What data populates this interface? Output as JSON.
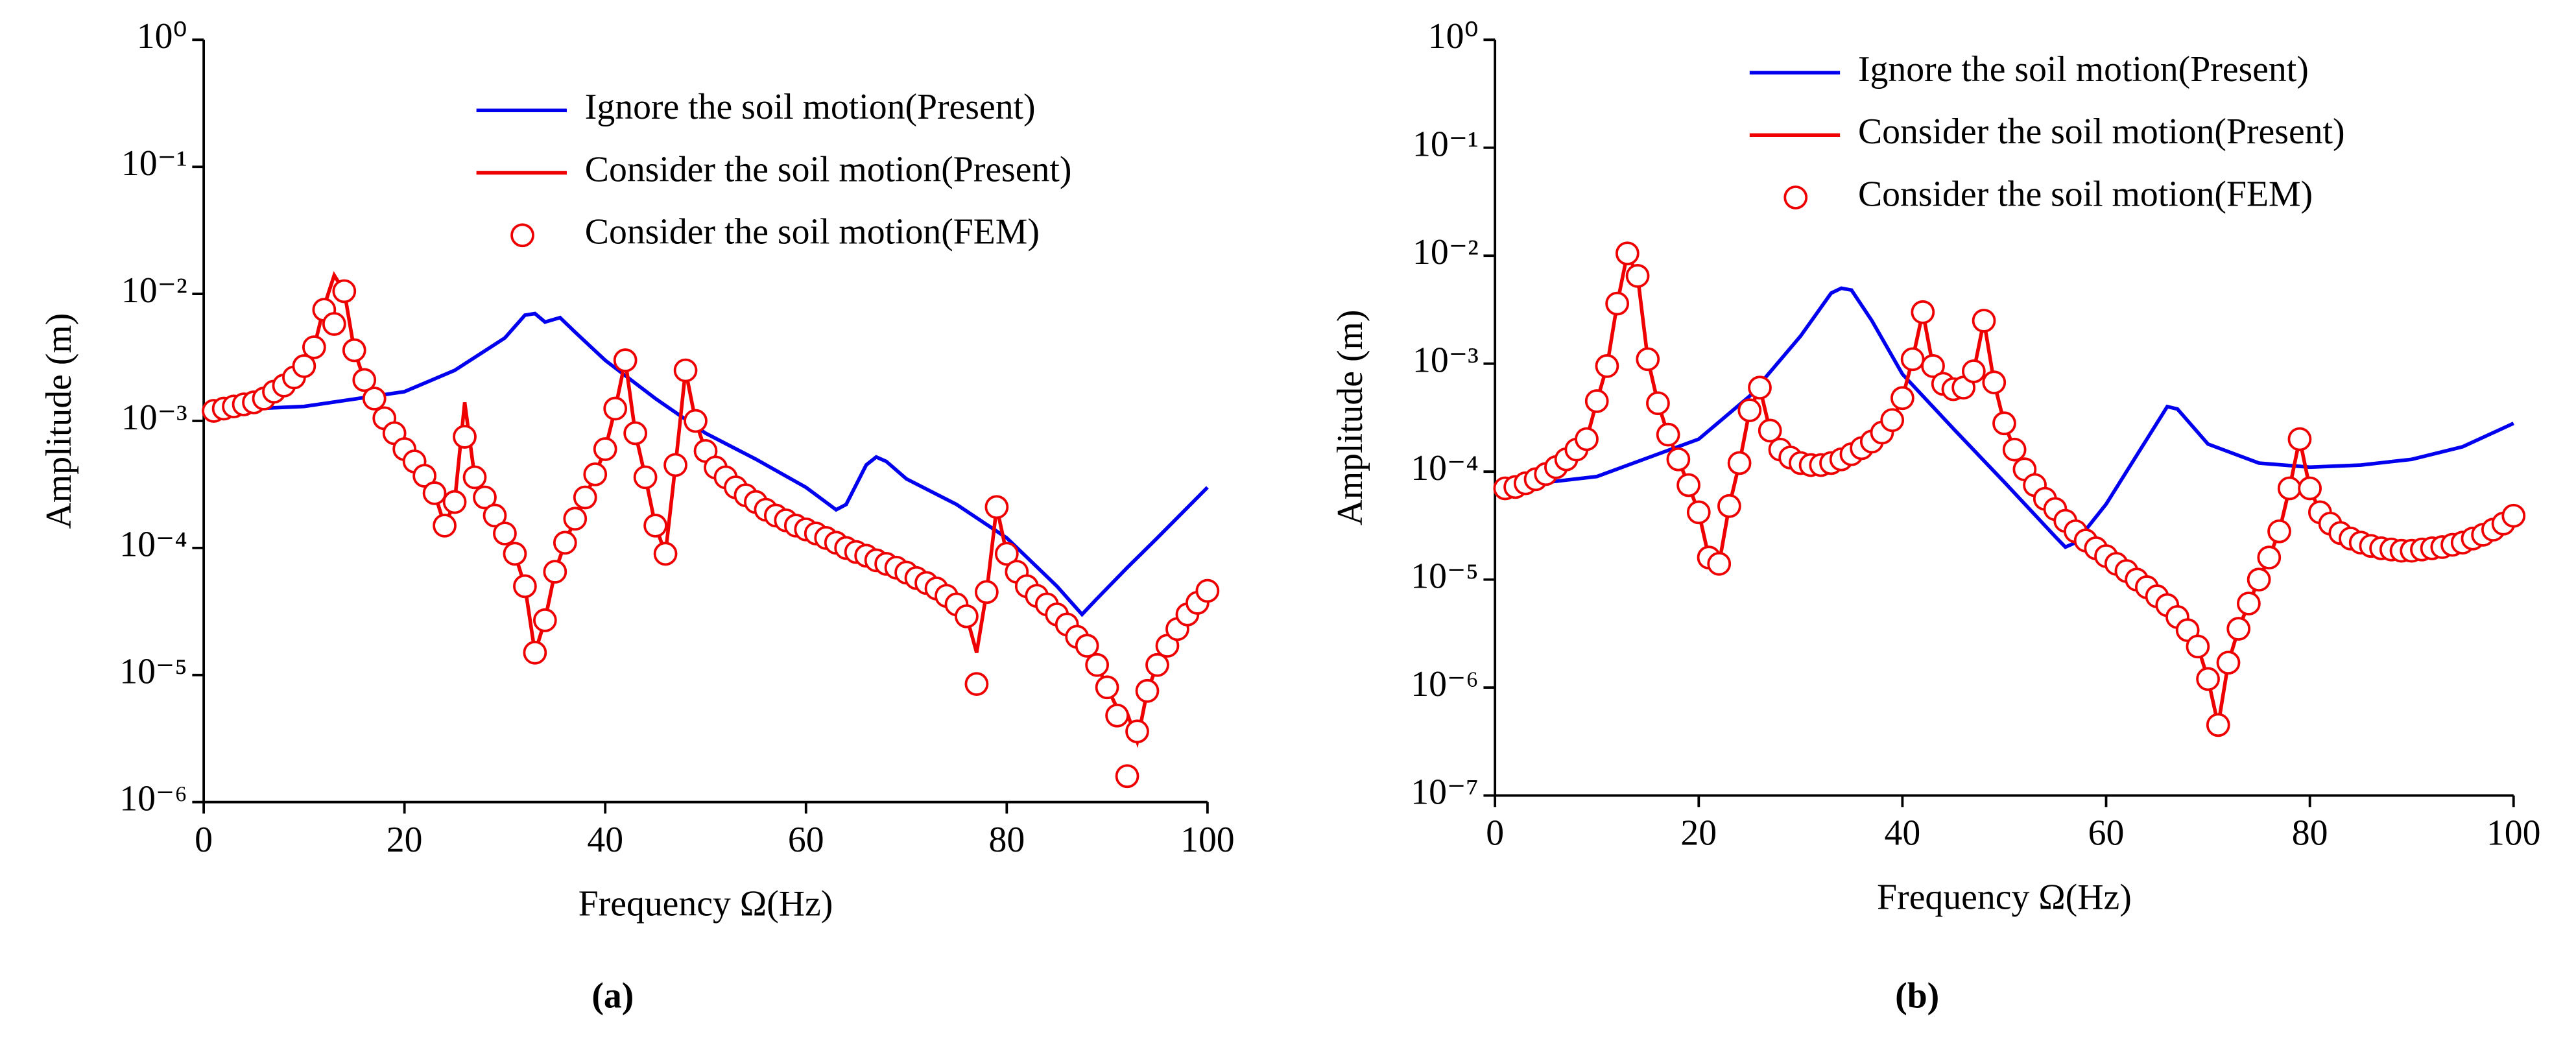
{
  "chart_data": [
    {
      "type": "line",
      "caption": "(a)",
      "xlabel": "Frequency Ω(Hz)",
      "ylabel": "Amplitude (m)",
      "log_y": true,
      "xlim": [
        0,
        100
      ],
      "xticks": [
        0,
        20,
        40,
        60,
        80,
        100
      ],
      "ylim": [
        1e-06,
        1
      ],
      "yticks": [
        {
          "value": 1e-06,
          "label": "10⁻⁶"
        },
        {
          "value": 1e-05,
          "label": "10⁻⁵"
        },
        {
          "value": 0.0001,
          "label": "10⁻⁴"
        },
        {
          "value": 0.001,
          "label": "10⁻³"
        },
        {
          "value": 0.01,
          "label": "10⁻²"
        },
        {
          "value": 0.1,
          "label": "10⁻¹"
        },
        {
          "value": 1,
          "label": "10⁰"
        }
      ],
      "x": [
        0,
        1,
        2,
        3,
        4,
        5,
        6,
        7,
        8,
        9,
        10,
        11,
        12,
        13,
        14,
        15,
        16,
        17,
        18,
        19,
        20,
        21,
        22,
        23,
        24,
        25,
        26,
        27,
        28,
        29,
        30,
        31,
        32,
        33,
        34,
        35,
        36,
        37,
        38,
        39,
        40,
        41,
        42,
        43,
        44,
        45,
        46,
        47,
        48,
        49,
        50,
        51,
        52,
        53,
        54,
        55,
        56,
        57,
        58,
        59,
        60,
        61,
        62,
        63,
        64,
        65,
        66,
        67,
        68,
        69,
        70,
        71,
        72,
        73,
        74,
        75,
        76,
        77,
        78,
        79,
        80,
        81,
        82,
        83,
        84,
        85,
        86,
        87,
        88,
        89,
        90,
        91,
        92,
        93,
        94,
        95,
        96,
        97,
        98,
        99,
        100
      ],
      "series": [
        {
          "name": "Ignore the soil motion(Present)",
          "color": "#0000ee",
          "style": "line",
          "x": [
            0,
            10,
            20,
            25,
            30,
            32,
            33,
            34,
            35.5,
            37,
            40,
            45,
            50,
            55,
            60,
            63,
            64,
            66,
            67,
            68,
            70,
            75,
            80,
            85,
            87.5,
            89,
            92,
            95,
            100
          ],
          "values": [
            0.0012,
            0.0013,
            0.0017,
            0.0025,
            0.0045,
            0.0068,
            0.007,
            0.006,
            0.0065,
            0.005,
            0.003,
            0.0015,
            0.0008,
            0.0005,
            0.0003,
            0.0002,
            0.00022,
            0.00045,
            0.00052,
            0.00048,
            0.00035,
            0.00022,
            0.00012,
            5e-05,
            3e-05,
            4e-05,
            7e-05,
            0.00012,
            0.0003
          ]
        },
        {
          "name": "Consider the soil motion(Present)",
          "color": "#ee0000",
          "style": "line",
          "values": [
            0.0012,
            0.0012,
            0.00125,
            0.0013,
            0.00135,
            0.0014,
            0.0015,
            0.0017,
            0.0019,
            0.0022,
            0.0027,
            0.0038,
            0.008,
            0.014,
            0.0105,
            0.0036,
            0.0021,
            0.0015,
            0.00105,
            0.0008,
            0.0006,
            0.00048,
            0.00037,
            0.00027,
            0.00015,
            0.00023,
            0.0014,
            0.00036,
            0.00025,
            0.00018,
            0.00013,
            9e-05,
            5e-05,
            1.5e-05,
            2.7e-05,
            6.5e-05,
            0.00011,
            0.00017,
            0.00025,
            0.00038,
            0.0006,
            0.00125,
            0.003,
            0.0008,
            0.00036,
            0.00015,
            9e-05,
            0.00045,
            0.0025,
            0.001,
            0.00058,
            0.00043,
            0.00036,
            0.0003,
            0.00026,
            0.00023,
            0.0002,
            0.00018,
            0.000165,
            0.00015,
            0.00014,
            0.00013,
            0.00012,
            0.00011,
            0.0001,
            9.3e-05,
            8.7e-05,
            8e-05,
            7.5e-05,
            7e-05,
            6.4e-05,
            5.8e-05,
            5.3e-05,
            4.8e-05,
            4.2e-05,
            3.6e-05,
            2.9e-05,
            1.5e-05,
            4.5e-05,
            0.00021,
            9e-05,
            6.5e-05,
            5e-05,
            4.2e-05,
            3.6e-05,
            3e-05,
            2.5e-05,
            2e-05,
            1.7e-05,
            1.2e-05,
            8e-06,
            5.5e-06,
            5e-06,
            3e-06,
            7.5e-06,
            1.2e-05,
            1.7e-05,
            2.3e-05,
            3e-05,
            3.7e-05,
            4.6e-05
          ]
        },
        {
          "name": "Consider the soil motion(FEM)",
          "color": "#ee0000",
          "style": "marker",
          "values": [
            null,
            0.0012,
            0.00125,
            0.0013,
            0.00135,
            0.0014,
            0.0015,
            0.0017,
            0.0019,
            0.0022,
            0.0027,
            0.0038,
            0.0075,
            0.0058,
            0.0105,
            0.0036,
            0.0021,
            0.0015,
            0.00105,
            0.0008,
            0.0006,
            0.00048,
            0.00037,
            0.00027,
            0.00015,
            0.00023,
            0.00075,
            0.00036,
            0.00025,
            0.00018,
            0.00013,
            9e-05,
            5e-05,
            1.5e-05,
            2.7e-05,
            6.5e-05,
            0.00011,
            0.00017,
            0.00025,
            0.00038,
            0.0006,
            0.00125,
            0.003,
            0.0008,
            0.00036,
            0.00015,
            9e-05,
            0.00045,
            0.0025,
            0.001,
            0.00058,
            0.00043,
            0.00036,
            0.0003,
            0.00026,
            0.00023,
            0.0002,
            0.00018,
            0.000165,
            0.00015,
            0.00014,
            0.00013,
            0.00012,
            0.00011,
            0.0001,
            9.3e-05,
            8.7e-05,
            8e-05,
            7.5e-05,
            7e-05,
            6.4e-05,
            5.8e-05,
            5.3e-05,
            4.8e-05,
            4.2e-05,
            3.6e-05,
            2.9e-05,
            8.5e-06,
            4.5e-05,
            0.00021,
            9e-05,
            6.5e-05,
            5e-05,
            4.2e-05,
            3.6e-05,
            3e-05,
            2.5e-05,
            2e-05,
            1.7e-05,
            1.2e-05,
            8e-06,
            4.8e-06,
            1.6e-06,
            3.6e-06,
            7.5e-06,
            1.2e-05,
            1.7e-05,
            2.3e-05,
            3e-05,
            3.7e-05,
            4.6e-05
          ]
        }
      ]
    },
    {
      "type": "line",
      "caption": "(b)",
      "xlabel": "Frequency Ω(Hz)",
      "ylabel": "Amplitude (m)",
      "log_y": true,
      "xlim": [
        0,
        100
      ],
      "xticks": [
        0,
        20,
        40,
        60,
        80,
        100
      ],
      "ylim": [
        1e-07,
        1
      ],
      "yticks": [
        {
          "value": 1e-07,
          "label": "10⁻⁷"
        },
        {
          "value": 1e-06,
          "label": "10⁻⁶"
        },
        {
          "value": 1e-05,
          "label": "10⁻⁵"
        },
        {
          "value": 0.0001,
          "label": "10⁻⁴"
        },
        {
          "value": 0.001,
          "label": "10⁻³"
        },
        {
          "value": 0.01,
          "label": "10⁻²"
        },
        {
          "value": 0.1,
          "label": "10⁻¹"
        },
        {
          "value": 1,
          "label": "10⁰"
        }
      ],
      "x": [
        0,
        1,
        2,
        3,
        4,
        5,
        6,
        7,
        8,
        9,
        10,
        11,
        12,
        13,
        14,
        15,
        16,
        17,
        18,
        19,
        20,
        21,
        22,
        23,
        24,
        25,
        26,
        27,
        28,
        29,
        30,
        31,
        32,
        33,
        34,
        35,
        36,
        37,
        38,
        39,
        40,
        41,
        42,
        43,
        44,
        45,
        46,
        47,
        48,
        49,
        50,
        51,
        52,
        53,
        54,
        55,
        56,
        57,
        58,
        59,
        60,
        61,
        62,
        63,
        64,
        65,
        66,
        67,
        68,
        69,
        70,
        71,
        72,
        73,
        74,
        75,
        76,
        77,
        78,
        79,
        80,
        81,
        82,
        83,
        84,
        85,
        86,
        87,
        88,
        89,
        90,
        91,
        92,
        93,
        94,
        95,
        96,
        97,
        98,
        99,
        100
      ],
      "series": [
        {
          "name": "Ignore the soil motion(Present)",
          "color": "#0000ee",
          "style": "line",
          "x": [
            0,
            10,
            20,
            25,
            30,
            33,
            34,
            35,
            37,
            40,
            45,
            50,
            55,
            56,
            57,
            60,
            64,
            66,
            67,
            70,
            75,
            80,
            85,
            90,
            95,
            100
          ],
          "values": [
            7e-05,
            9e-05,
            0.0002,
            0.0005,
            0.0018,
            0.0045,
            0.005,
            0.0048,
            0.0025,
            0.0008,
            0.00025,
            8e-05,
            2.5e-05,
            2e-05,
            2.2e-05,
            5e-05,
            0.0002,
            0.0004,
            0.00038,
            0.00018,
            0.00012,
            0.00011,
            0.000115,
            0.00013,
            0.00017,
            0.00028
          ]
        },
        {
          "name": "Consider the soil motion(Present)",
          "color": "#ee0000",
          "style": "line",
          "values": [
            7e-05,
            7e-05,
            7.2e-05,
            7.8e-05,
            8.5e-05,
            9.5e-05,
            0.00011,
            0.00013,
            0.00016,
            0.0002,
            0.00045,
            0.00095,
            0.0036,
            0.0105,
            0.0065,
            0.0011,
            0.00043,
            0.00022,
            0.00013,
            7.5e-05,
            4.2e-05,
            1.6e-05,
            1.4e-05,
            4.8e-05,
            0.00012,
            0.00037,
            0.0006,
            0.00024,
            0.00016,
            0.000135,
            0.00012,
            0.000115,
            0.000115,
            0.00012,
            0.00013,
            0.000145,
            0.000165,
            0.00019,
            0.00023,
            0.0003,
            0.00048,
            0.0011,
            0.003,
            0.00095,
            0.00065,
            0.00058,
            0.0006,
            0.00085,
            0.0025,
            0.00067,
            0.00028,
            0.00016,
            0.000105,
            7.5e-05,
            5.6e-05,
            4.5e-05,
            3.5e-05,
            2.8e-05,
            2.3e-05,
            1.95e-05,
            1.65e-05,
            1.4e-05,
            1.2e-05,
            1e-05,
            8.5e-06,
            7e-06,
            5.8e-06,
            4.5e-06,
            3.4e-06,
            2.4e-06,
            1.2e-06,
            4.5e-07,
            1.7e-06,
            3.5e-06,
            6e-06,
            1e-05,
            1.6e-05,
            2.8e-05,
            7e-05,
            0.0002,
            7e-05,
            4.2e-05,
            3.3e-05,
            2.7e-05,
            2.4e-05,
            2.2e-05,
            2.05e-05,
            1.95e-05,
            1.9e-05,
            1.85e-05,
            1.85e-05,
            1.9e-05,
            1.95e-05,
            2e-05,
            2.1e-05,
            2.2e-05,
            2.4e-05,
            2.6e-05,
            2.9e-05,
            3.3e-05,
            3.9e-05
          ]
        },
        {
          "name": "Consider the soil motion(FEM)",
          "color": "#ee0000",
          "style": "marker",
          "values": [
            null,
            7e-05,
            7.2e-05,
            7.8e-05,
            8.5e-05,
            9.5e-05,
            0.00011,
            0.00013,
            0.00016,
            0.0002,
            0.00045,
            0.00095,
            0.0036,
            0.0105,
            0.0065,
            0.0011,
            0.00043,
            0.00022,
            0.00013,
            7.5e-05,
            4.2e-05,
            1.6e-05,
            1.4e-05,
            4.8e-05,
            0.00012,
            0.00037,
            0.0006,
            0.00024,
            0.00016,
            0.000135,
            0.00012,
            0.000115,
            0.000115,
            0.00012,
            0.00013,
            0.000145,
            0.000165,
            0.00019,
            0.00023,
            0.0003,
            0.00048,
            0.0011,
            0.003,
            0.00095,
            0.00065,
            0.00058,
            0.0006,
            0.00085,
            0.0025,
            0.00067,
            0.00028,
            0.00016,
            0.000105,
            7.5e-05,
            5.6e-05,
            4.5e-05,
            3.5e-05,
            2.8e-05,
            2.3e-05,
            1.95e-05,
            1.65e-05,
            1.4e-05,
            1.2e-05,
            1e-05,
            8.5e-06,
            7e-06,
            5.8e-06,
            4.5e-06,
            3.4e-06,
            2.4e-06,
            1.2e-06,
            4.5e-07,
            1.7e-06,
            3.5e-06,
            6e-06,
            1e-05,
            1.6e-05,
            2.8e-05,
            7e-05,
            0.0002,
            7e-05,
            4.2e-05,
            3.3e-05,
            2.7e-05,
            2.4e-05,
            2.2e-05,
            2.05e-05,
            1.95e-05,
            1.9e-05,
            1.85e-05,
            1.85e-05,
            1.9e-05,
            1.95e-05,
            2e-05,
            2.1e-05,
            2.2e-05,
            2.4e-05,
            2.6e-05,
            2.9e-05,
            3.3e-05,
            3.9e-05
          ]
        }
      ]
    }
  ]
}
